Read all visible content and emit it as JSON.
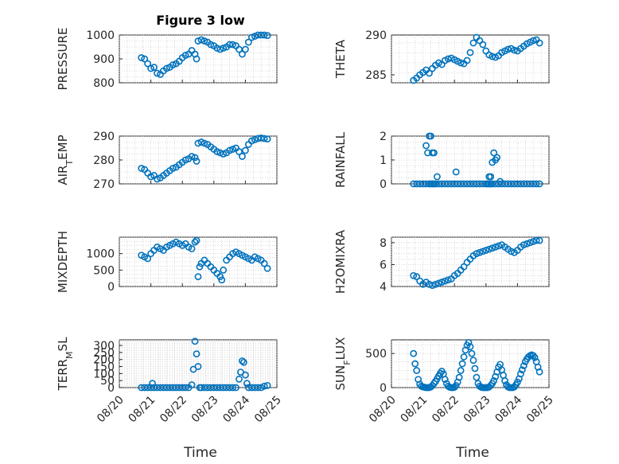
{
  "figure": {
    "title": "Figure 3 low",
    "marker_color": "#0072BD",
    "axis_color": "#262626",
    "grid_color": "#bdbdbd",
    "xlabel": "Time",
    "x_domain": [
      20,
      25
    ],
    "x_ticks": [
      20,
      21,
      22,
      23,
      24,
      25
    ],
    "x_tick_labels": [
      "08/20",
      "08/21",
      "08/22",
      "08/23",
      "08/24",
      "08/25"
    ]
  },
  "chart_data": [
    {
      "type": "scatter",
      "ylabel": "PRESSURE",
      "ylabel_sub": "",
      "ylabel_after": "",
      "ylim": [
        800,
        1000
      ],
      "yticks": [
        800,
        900,
        1000
      ],
      "grid": true,
      "series": [
        {
          "x": [
            20.7,
            20.8,
            20.9,
            21.0,
            21.1,
            21.2,
            21.3,
            21.4,
            21.5,
            21.6,
            21.7,
            21.8,
            21.9,
            22.0,
            22.1,
            22.2,
            22.3,
            22.4,
            22.45,
            22.5,
            22.6,
            22.7,
            22.8,
            22.9,
            23.0,
            23.1,
            23.2,
            23.3,
            23.4,
            23.5,
            23.6,
            23.7,
            23.8,
            23.9,
            24.0,
            24.1,
            24.2,
            24.3,
            24.4,
            24.5,
            24.6,
            24.7
          ],
          "y": [
            905,
            900,
            880,
            860,
            865,
            840,
            835,
            850,
            860,
            865,
            875,
            880,
            890,
            905,
            915,
            920,
            935,
            920,
            900,
            975,
            980,
            975,
            970,
            960,
            955,
            945,
            940,
            945,
            950,
            960,
            960,
            955,
            940,
            920,
            940,
            970,
            990,
            995,
            1000,
            1000,
            1000,
            998
          ]
        }
      ]
    },
    {
      "type": "scatter",
      "ylabel": "THETA",
      "ylabel_sub": "",
      "ylabel_after": "",
      "ylim": [
        284,
        290
      ],
      "yticks": [
        285,
        290
      ],
      "grid": true,
      "series": [
        {
          "x": [
            20.7,
            20.8,
            20.9,
            21.0,
            21.1,
            21.2,
            21.3,
            21.4,
            21.5,
            21.6,
            21.7,
            21.8,
            21.9,
            22.0,
            22.1,
            22.2,
            22.3,
            22.4,
            22.5,
            22.6,
            22.7,
            22.8,
            22.9,
            23.0,
            23.1,
            23.2,
            23.3,
            23.4,
            23.5,
            23.6,
            23.7,
            23.8,
            23.9,
            24.0,
            24.1,
            24.2,
            24.3,
            24.4,
            24.5,
            24.6,
            24.7
          ],
          "y": [
            284.3,
            284.6,
            285.0,
            285.3,
            285.6,
            285.2,
            285.8,
            286.2,
            286.5,
            286.3,
            286.8,
            287.0,
            287.1,
            286.9,
            286.7,
            286.5,
            286.4,
            286.8,
            287.8,
            289.0,
            289.7,
            289.3,
            288.8,
            288.0,
            287.5,
            287.3,
            287.2,
            287.4,
            287.8,
            288.0,
            288.2,
            288.3,
            288.1,
            288.0,
            288.3,
            288.6,
            288.9,
            289.1,
            289.3,
            289.4,
            289.0
          ]
        }
      ]
    },
    {
      "type": "scatter",
      "ylabel": "AIR",
      "ylabel_sub": "T",
      "ylabel_after": "EMP",
      "ylim": [
        270,
        290
      ],
      "yticks": [
        270,
        280,
        290
      ],
      "grid": true,
      "series": [
        {
          "x": [
            20.7,
            20.8,
            20.9,
            21.0,
            21.1,
            21.2,
            21.3,
            21.4,
            21.5,
            21.6,
            21.7,
            21.8,
            21.9,
            22.0,
            22.1,
            22.2,
            22.3,
            22.4,
            22.45,
            22.5,
            22.6,
            22.7,
            22.8,
            22.9,
            23.0,
            23.1,
            23.2,
            23.3,
            23.4,
            23.5,
            23.6,
            23.7,
            23.8,
            23.9,
            24.0,
            24.1,
            24.2,
            24.3,
            24.4,
            24.5,
            24.6,
            24.7
          ],
          "y": [
            276.5,
            276.0,
            274.5,
            273.0,
            273.5,
            272.0,
            272.5,
            273.5,
            274.5,
            275.5,
            276.5,
            277.0,
            278.0,
            279.0,
            280.0,
            280.5,
            281.5,
            281.0,
            279.5,
            287.0,
            287.5,
            287.0,
            286.5,
            285.5,
            284.5,
            283.5,
            283.0,
            282.5,
            283.0,
            284.0,
            284.5,
            285.0,
            283.5,
            281.5,
            284.0,
            286.5,
            288.0,
            288.5,
            289.0,
            289.2,
            289.0,
            288.8
          ]
        }
      ]
    },
    {
      "type": "scatter",
      "ylabel": "RAINFALL",
      "ylabel_sub": "",
      "ylabel_after": "",
      "ylim": [
        0,
        2
      ],
      "yticks": [
        0,
        1,
        2
      ],
      "grid": true,
      "series": [
        {
          "x": [
            20.7,
            20.8,
            20.9,
            21.0,
            21.1,
            21.2,
            21.25,
            21.3,
            21.35,
            21.4,
            21.5,
            21.6,
            21.7,
            21.8,
            21.9,
            22.0,
            22.1,
            22.2,
            22.3,
            22.4,
            22.5,
            22.6,
            22.7,
            22.8,
            22.9,
            23.0,
            23.05,
            23.1,
            23.15,
            23.2,
            23.3,
            23.4,
            23.5,
            23.6,
            23.7,
            23.8,
            23.9,
            24.0,
            24.1,
            24.2,
            24.3,
            24.4,
            24.5,
            24.6,
            24.7,
            21.1,
            21.15,
            21.2,
            21.25,
            21.3,
            21.35,
            21.45,
            22.05,
            23.1,
            23.15,
            23.2,
            23.25,
            23.3,
            23.35,
            23.45
          ],
          "y": [
            0,
            0,
            0,
            0,
            0,
            0,
            0,
            0,
            0,
            0,
            0,
            0,
            0,
            0,
            0,
            0,
            0,
            0,
            0,
            0,
            0,
            0,
            0,
            0,
            0,
            0,
            0,
            0,
            0,
            0,
            0,
            0,
            0,
            0,
            0,
            0,
            0,
            0,
            0,
            0,
            0,
            0,
            0,
            0,
            0,
            1.6,
            1.3,
            2.0,
            2.0,
            1.3,
            1.3,
            0.3,
            0.5,
            0.3,
            0.3,
            0.9,
            1.3,
            1.0,
            1.1,
            0.1
          ]
        }
      ]
    },
    {
      "type": "scatter",
      "ylabel": "MIXDEPTH",
      "ylabel_sub": "",
      "ylabel_after": "",
      "ylim": [
        0,
        1500
      ],
      "yticks": [
        0,
        500,
        1000
      ],
      "grid": true,
      "series": [
        {
          "x": [
            20.7,
            20.8,
            20.9,
            21.0,
            21.1,
            21.2,
            21.3,
            21.4,
            21.5,
            21.6,
            21.7,
            21.8,
            21.9,
            22.0,
            22.1,
            22.2,
            22.3,
            22.4,
            22.45,
            22.5,
            22.55,
            22.6,
            22.7,
            22.8,
            22.9,
            23.0,
            23.1,
            23.2,
            23.25,
            23.3,
            23.4,
            23.5,
            23.6,
            23.7,
            23.8,
            23.9,
            24.0,
            24.1,
            24.2,
            24.3,
            24.4,
            24.5,
            24.6,
            24.7
          ],
          "y": [
            950,
            900,
            850,
            1000,
            1100,
            1200,
            1150,
            1100,
            1200,
            1250,
            1300,
            1350,
            1300,
            1250,
            1300,
            1200,
            1150,
            1350,
            1400,
            300,
            600,
            700,
            800,
            700,
            600,
            500,
            400,
            300,
            200,
            500,
            800,
            900,
            1000,
            1050,
            1000,
            950,
            900,
            850,
            800,
            900,
            850,
            800,
            700,
            550
          ]
        }
      ]
    },
    {
      "type": "scatter",
      "ylabel": "H2OMIXRA",
      "ylabel_sub": "",
      "ylabel_after": "",
      "ylim": [
        4,
        8.5
      ],
      "yticks": [
        4,
        6,
        8
      ],
      "grid": true,
      "series": [
        {
          "x": [
            20.7,
            20.8,
            20.9,
            21.0,
            21.1,
            21.2,
            21.3,
            21.4,
            21.5,
            21.6,
            21.7,
            21.8,
            21.9,
            22.0,
            22.1,
            22.2,
            22.3,
            22.4,
            22.5,
            22.6,
            22.7,
            22.8,
            22.9,
            23.0,
            23.1,
            23.2,
            23.3,
            23.4,
            23.5,
            23.6,
            23.7,
            23.8,
            23.9,
            24.0,
            24.1,
            24.2,
            24.3,
            24.4,
            24.5,
            24.6,
            24.7
          ],
          "y": [
            5.0,
            4.9,
            4.5,
            4.2,
            4.4,
            4.2,
            4.1,
            4.2,
            4.3,
            4.4,
            4.5,
            4.6,
            4.7,
            5.0,
            5.2,
            5.5,
            5.8,
            6.2,
            6.5,
            6.8,
            7.0,
            7.1,
            7.2,
            7.3,
            7.4,
            7.5,
            7.6,
            7.7,
            7.8,
            7.6,
            7.4,
            7.2,
            7.1,
            7.3,
            7.6,
            7.8,
            7.9,
            8.0,
            8.1,
            8.2,
            8.2
          ]
        }
      ]
    },
    {
      "type": "scatter",
      "ylabel": "TERR",
      "ylabel_sub": "M",
      "ylabel_after": "SL",
      "ylim": [
        0,
        340
      ],
      "yticks": [
        0,
        50,
        100,
        150,
        200,
        250,
        300
      ],
      "grid": true,
      "series": [
        {
          "x": [
            20.7,
            20.8,
            20.9,
            21.0,
            21.1,
            21.2,
            21.3,
            21.4,
            21.5,
            21.6,
            21.7,
            21.8,
            21.9,
            22.0,
            22.1,
            22.2,
            22.3,
            22.35,
            22.4,
            22.45,
            22.5,
            22.55,
            22.6,
            22.7,
            22.8,
            22.9,
            23.0,
            23.1,
            23.2,
            23.3,
            23.4,
            23.5,
            23.6,
            23.7,
            23.8,
            23.85,
            23.9,
            23.95,
            24.0,
            24.05,
            24.1,
            24.2,
            24.3,
            24.4,
            24.5,
            24.6,
            24.7,
            21.05
          ],
          "y": [
            0,
            0,
            0,
            0,
            0,
            0,
            0,
            0,
            0,
            0,
            0,
            0,
            0,
            0,
            0,
            0,
            20,
            130,
            330,
            240,
            150,
            0,
            0,
            0,
            0,
            0,
            0,
            0,
            0,
            0,
            0,
            0,
            0,
            0,
            60,
            110,
            190,
            180,
            90,
            30,
            0,
            0,
            0,
            0,
            0,
            10,
            15,
            30
          ]
        }
      ]
    },
    {
      "type": "scatter",
      "ylabel": "SUN",
      "ylabel_sub": "F",
      "ylabel_after": "LUX",
      "ylim": [
        0,
        700
      ],
      "yticks": [
        0,
        500
      ],
      "grid": true,
      "series": [
        {
          "x": [
            20.7,
            20.75,
            20.8,
            20.85,
            20.9,
            20.95,
            21.0,
            21.05,
            21.1,
            21.15,
            21.2,
            21.25,
            21.3,
            21.35,
            21.4,
            21.45,
            21.5,
            21.55,
            21.6,
            21.65,
            21.7,
            21.75,
            21.8,
            21.85,
            21.9,
            21.95,
            22.0,
            22.05,
            22.1,
            22.15,
            22.2,
            22.25,
            22.3,
            22.35,
            22.4,
            22.45,
            22.5,
            22.55,
            22.6,
            22.65,
            22.7,
            22.75,
            22.8,
            22.85,
            22.9,
            22.95,
            23.0,
            23.05,
            23.1,
            23.15,
            23.2,
            23.25,
            23.3,
            23.35,
            23.4,
            23.45,
            23.5,
            23.55,
            23.6,
            23.65,
            23.7,
            23.75,
            23.8,
            23.85,
            23.9,
            23.95,
            24.0,
            24.05,
            24.1,
            24.15,
            24.2,
            24.25,
            24.3,
            24.35,
            24.4,
            24.45,
            24.5,
            24.55,
            24.6,
            24.65,
            24.7
          ],
          "y": [
            500,
            350,
            250,
            120,
            50,
            20,
            10,
            5,
            0,
            0,
            0,
            10,
            30,
            60,
            90,
            130,
            170,
            210,
            240,
            200,
            120,
            60,
            20,
            5,
            0,
            0,
            5,
            30,
            80,
            150,
            250,
            350,
            450,
            550,
            620,
            660,
            600,
            500,
            400,
            280,
            150,
            60,
            20,
            5,
            0,
            0,
            0,
            0,
            10,
            30,
            60,
            100,
            160,
            230,
            300,
            340,
            260,
            180,
            100,
            40,
            10,
            0,
            0,
            0,
            10,
            40,
            80,
            130,
            200,
            260,
            320,
            380,
            420,
            450,
            470,
            480,
            470,
            440,
            380,
            300,
            230
          ]
        }
      ]
    }
  ]
}
